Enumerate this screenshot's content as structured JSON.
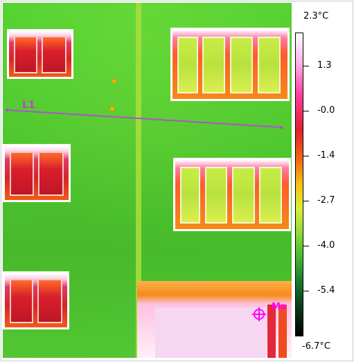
{
  "thermal_image": {
    "line_label": "L1",
    "marker_label": "Ma",
    "temperature_scale": {
      "max": "2.3°C",
      "min": "-6.7°C",
      "ticks": [
        "1.3",
        "-0.0",
        "-1.4",
        "-2.7",
        "-4.0",
        "-5.4"
      ]
    }
  },
  "colors": {
    "wall": "#4ec72f",
    "hot": "#d62525",
    "marker": "#ff00ff",
    "line": "#b050d0"
  }
}
